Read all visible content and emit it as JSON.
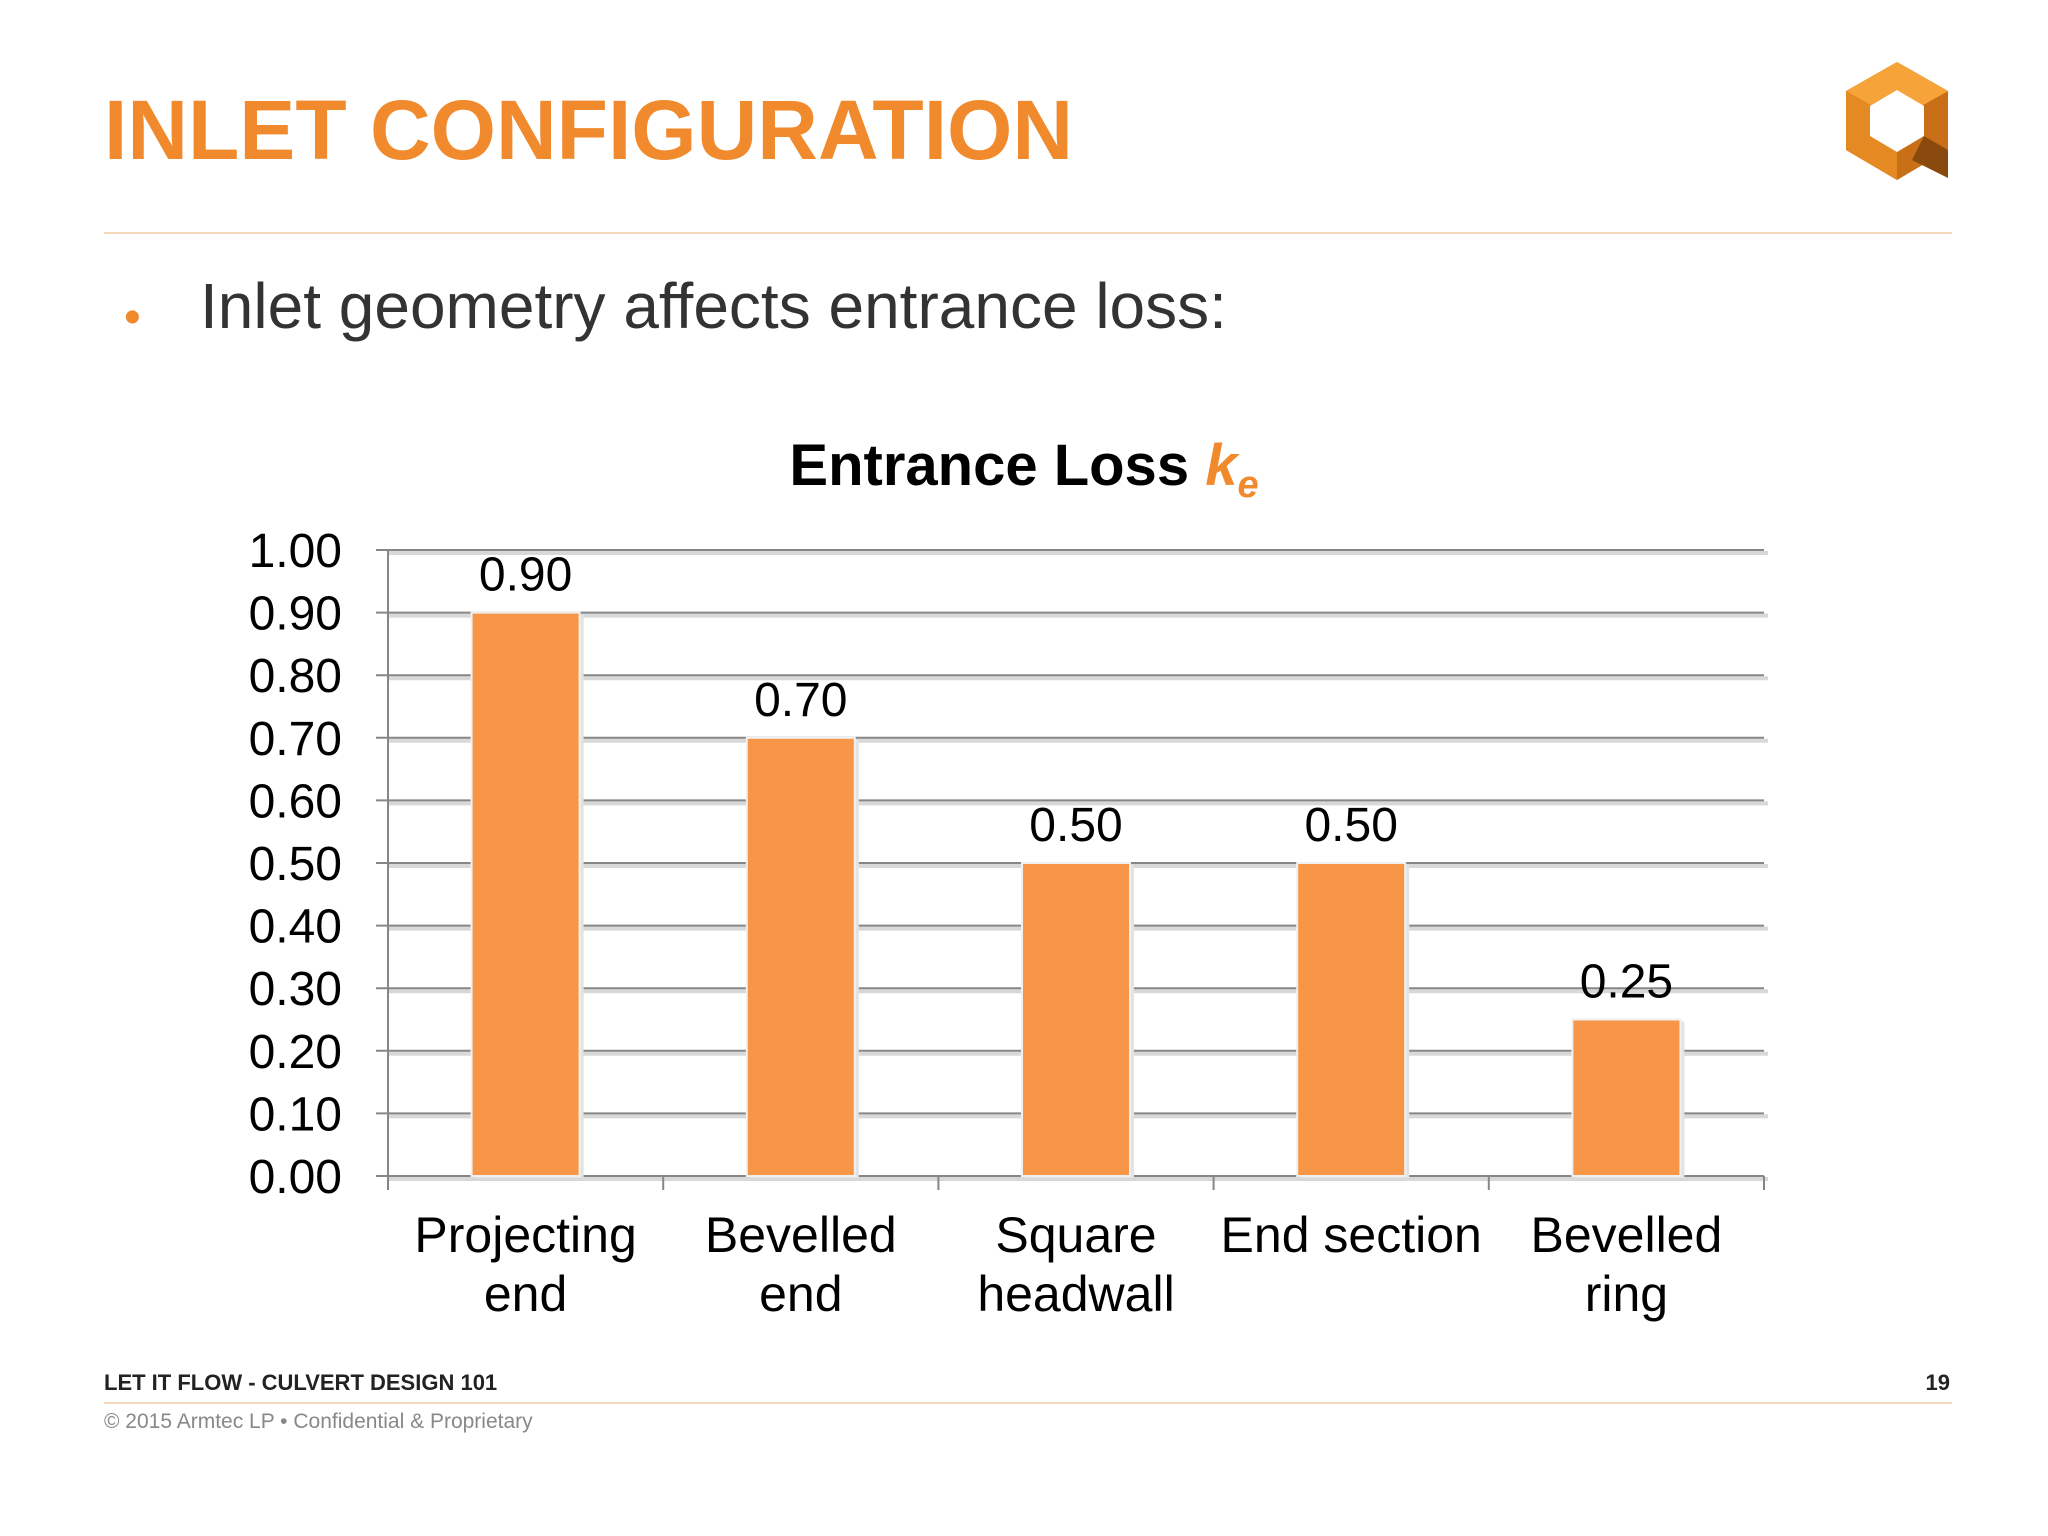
{
  "slide": {
    "title": "INLET CONFIGURATION",
    "bullet": "Inlet geometry affects entrance loss:",
    "footer_left": "LET IT FLOW - CULVERT DESIGN 101",
    "footer_page": "19",
    "footer_copy": "© 2015 Armtec LP •  Confidential & Proprietary"
  },
  "colors": {
    "accent": "#f08a2c",
    "bar": "#f79646"
  },
  "chart_data": {
    "type": "bar",
    "title": "Entrance Loss",
    "title_symbol": "k",
    "title_subscript": "e",
    "categories": [
      [
        "Projecting",
        "end"
      ],
      [
        "Bevelled",
        "end"
      ],
      [
        "Square",
        "headwall"
      ],
      [
        "End section"
      ],
      [
        "Bevelled",
        "ring"
      ]
    ],
    "values": [
      0.9,
      0.7,
      0.5,
      0.5,
      0.25
    ],
    "data_labels": [
      "0.90",
      "0.70",
      "0.50",
      "0.50",
      "0.25"
    ],
    "y_ticks": [
      "0.00",
      "0.10",
      "0.20",
      "0.30",
      "0.40",
      "0.50",
      "0.60",
      "0.70",
      "0.80",
      "0.90",
      "1.00"
    ],
    "ylim": [
      0,
      1
    ],
    "grid": true,
    "legend": "none"
  }
}
